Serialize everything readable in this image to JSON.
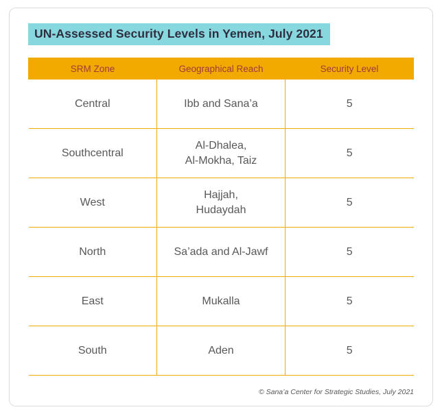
{
  "colors": {
    "accent_yellow": "#f2a900",
    "highlight_teal": "#87d7de",
    "header_text": "#9d3b3d",
    "title_text": "#2f2e41",
    "body_text": "#58585a",
    "border_gray": "#dcdcdc"
  },
  "footer": "© Sana’a Center for Strategic Studies, July 2021",
  "chart_data": {
    "type": "table",
    "title": "UN-Assessed Security Levels in Yemen, July 2021",
    "columns": [
      "SRM Zone",
      "Geographical Reach",
      "Security Level"
    ],
    "rows": [
      [
        "Central",
        "Ibb and Sana’a",
        "5"
      ],
      [
        "Southcentral",
        "Al-Dhalea,\nAl-Mokha, Taiz",
        "5"
      ],
      [
        "West",
        "Hajjah,\nHudaydah",
        "5"
      ],
      [
        "North",
        "Sa’ada and Al-Jawf",
        "5"
      ],
      [
        "East",
        "Mukalla",
        "5"
      ],
      [
        "South",
        "Aden",
        "5"
      ]
    ]
  }
}
